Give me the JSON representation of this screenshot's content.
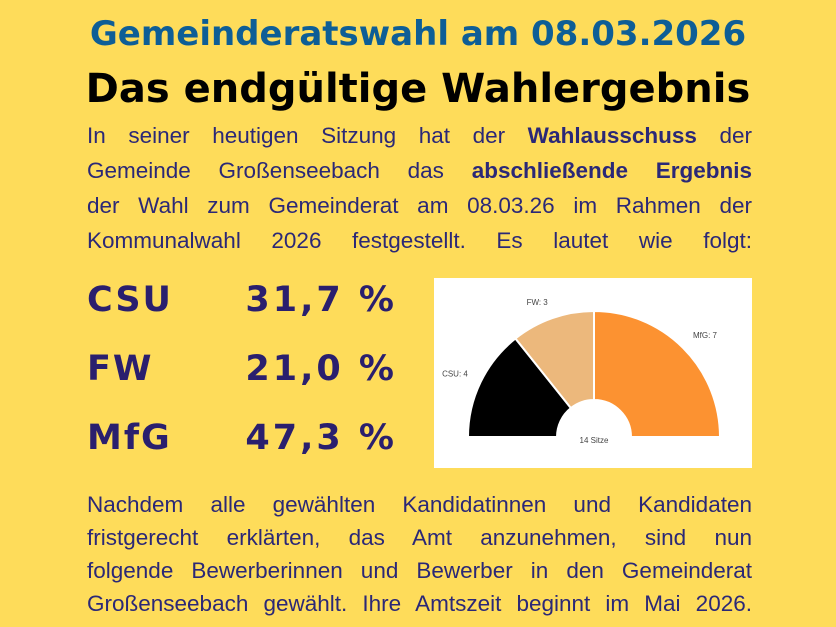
{
  "header": {
    "title": "Gemeinderatswahl am 08.03.2026",
    "subtitle": "Das endgültige Wahlergebnis"
  },
  "intro": {
    "lines": [
      [
        {
          "t": "In seiner heutigen Sitzung hat der "
        },
        {
          "t": "Wahlausschuss",
          "b": true
        },
        {
          "t": " der"
        }
      ],
      [
        {
          "t": "Gemeinde Großenseebach das "
        },
        {
          "t": "abschließende Ergebnis",
          "b": true
        }
      ],
      [
        {
          "t": "der Wahl zum Gemeinderat am 08.03.26 im Rahmen der"
        }
      ],
      [
        {
          "t": "Kommunalwahl 2026 festgestellt. Es lautet wie folgt:"
        }
      ]
    ]
  },
  "results": [
    {
      "party": "CSU",
      "percent": "31,7 %"
    },
    {
      "party": "FW",
      "percent": "21,0 %"
    },
    {
      "party": "MfG",
      "percent": "47,3 %"
    }
  ],
  "chart_data": {
    "type": "pie",
    "subtype": "half-donut",
    "center_label": "14 Sitze",
    "slices": [
      {
        "label": "CSU: 4",
        "name": "CSU",
        "value": 4,
        "color": "#000000"
      },
      {
        "label": "FW: 3",
        "name": "FW",
        "value": 3,
        "color": "#ECB87C"
      },
      {
        "label": "MfG: 7",
        "name": "MfG",
        "value": 7,
        "color": "#FC9231"
      }
    ]
  },
  "outro": {
    "lines": [
      "Nachdem alle gewählten Kandidatinnen und Kandidaten",
      "fristgerecht erklärten, das Amt anzunehmen, sind nun",
      "folgende Bewerberinnen und Bewerber in den Gemeinderat",
      "Großenseebach gewählt. Ihre Amtszeit beginnt im Mai 2026."
    ]
  }
}
